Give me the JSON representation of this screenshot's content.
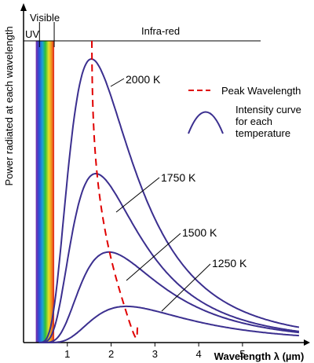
{
  "chart_data": {
    "type": "line",
    "title": "",
    "xlabel": "Wavelength λ (µm)",
    "ylabel": "Power radiated at each wavelength",
    "xlim": [
      0,
      6.4
    ],
    "ylim": [
      0,
      1.0
    ],
    "x_ticks": [
      "1",
      "2",
      "3",
      "4",
      "5"
    ],
    "regions": [
      {
        "label": "UV",
        "range": [
          0,
          0.4
        ]
      },
      {
        "label": "Visible",
        "range": [
          0.4,
          0.7
        ]
      },
      {
        "label": "Infra-red",
        "range": [
          0.7,
          6.4
        ]
      }
    ],
    "series": [
      {
        "name": "2000 K",
        "temperature": 2000,
        "peak_x": 1.55,
        "peak_y": 0.94,
        "color": "#3b2f8f"
      },
      {
        "name": "1750 K",
        "temperature": 1750,
        "peak_x": 1.65,
        "peak_y": 0.56,
        "color": "#3b2f8f"
      },
      {
        "name": "1500 K",
        "temperature": 1500,
        "peak_x": 1.95,
        "peak_y": 0.3,
        "color": "#3b2f8f"
      },
      {
        "name": "1250 K",
        "temperature": 1250,
        "peak_x": 2.35,
        "peak_y": 0.12,
        "color": "#3b2f8f"
      }
    ],
    "peak_line": {
      "name": "Peak Wavelength",
      "color": "#e00000",
      "x": [
        1.55,
        1.65,
        1.95,
        2.35,
        2.65
      ],
      "y": [
        0.94,
        0.56,
        0.3,
        0.12,
        0.04
      ]
    },
    "legend": [
      {
        "label": "Peak Wavelength",
        "style": "dashed",
        "color": "#e00000"
      },
      {
        "label": "Intensity curve\nfor each\ntemperature",
        "style": "arc",
        "color": "#3b2f8f"
      }
    ],
    "legend_position": "right",
    "grid": false
  }
}
